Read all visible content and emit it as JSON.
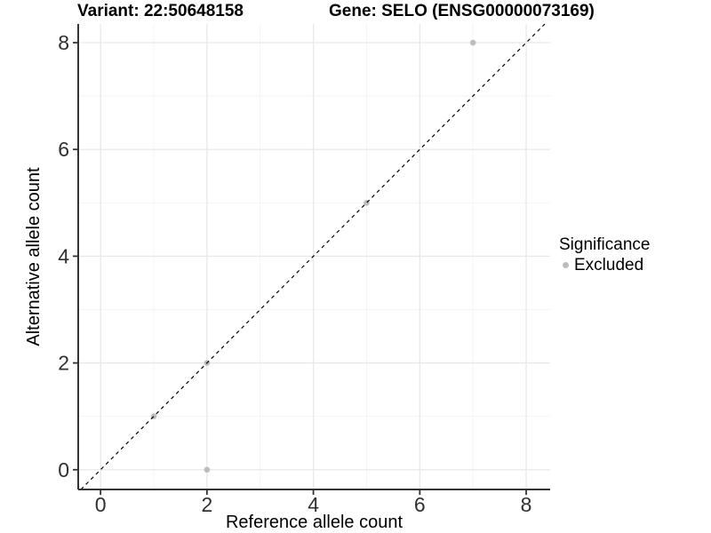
{
  "chart_data": {
    "type": "scatter",
    "titles": {
      "left": "Variant: 22:50648158",
      "right": "Gene: SELO (ENSG00000073169)"
    },
    "xlabel": "Reference allele count",
    "ylabel": "Alternative allele count",
    "xlim": [
      -0.42,
      8.45
    ],
    "ylim": [
      -0.37,
      8.35
    ],
    "xticks": [
      0,
      2,
      4,
      6,
      8
    ],
    "yticks": [
      0,
      2,
      4,
      6,
      8
    ],
    "xminor": [
      1,
      3,
      5,
      7
    ],
    "yminor": [
      1,
      3,
      5,
      7
    ],
    "grid": "on",
    "series": [
      {
        "name": "Excluded",
        "color": "#bdbdbd",
        "points": [
          [
            2,
            0
          ],
          [
            1,
            1
          ],
          [
            2,
            2
          ],
          [
            5,
            5
          ],
          [
            7,
            8
          ]
        ]
      }
    ],
    "identity_line": {
      "slope": 1,
      "intercept": 0,
      "style": "dashed",
      "color": "#000000"
    },
    "legend": {
      "position": "right",
      "title": "Significance",
      "entries": [
        {
          "label": "Excluded",
          "color": "#bdbdbd"
        }
      ]
    },
    "colors": {
      "grid_major": "#e8e8e8",
      "grid_minor": "#f3f3f3",
      "axis_line": "#333333",
      "tick_text": "#303030"
    }
  }
}
